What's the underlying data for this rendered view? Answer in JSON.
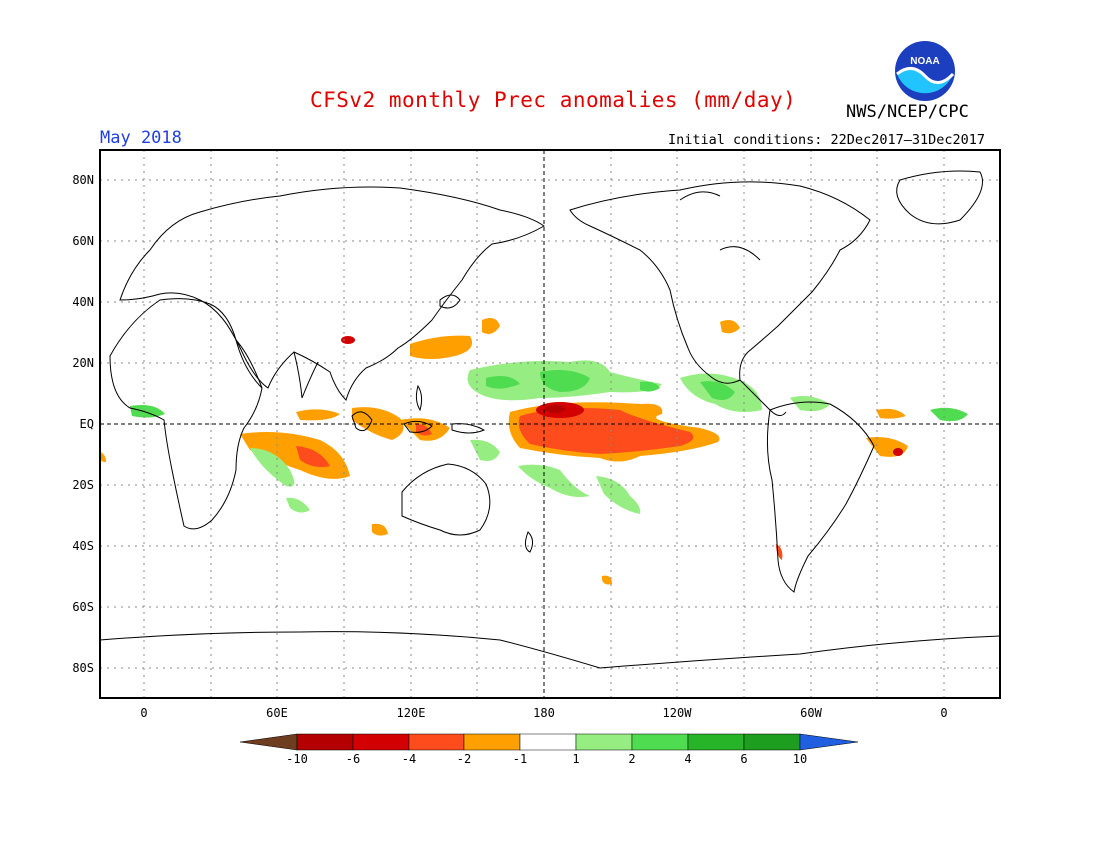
{
  "title": "CFSv2 monthly Prec anomalies (mm/day)",
  "agency": "NWS/NCEP/CPC",
  "logo_text": "NOAA",
  "valid_month": "May 2018",
  "initial_conditions": "Initial conditions: 22Dec2017–31Dec2017",
  "lat_labels": [
    "80N",
    "60N",
    "40N",
    "20N",
    "EQ",
    "20S",
    "40S",
    "60S",
    "80S"
  ],
  "lon_labels": [
    "0",
    "60E",
    "120E",
    "180",
    "120W",
    "60W",
    "0"
  ],
  "colorbar": {
    "labels": [
      "-10",
      "-6",
      "-4",
      "-2",
      "-1",
      "1",
      "2",
      "4",
      "6",
      "10"
    ],
    "colors": [
      "#6e3c1e",
      "#b40000",
      "#d20000",
      "#ff4c1c",
      "#ffa000",
      "#ffffff",
      "#96ee82",
      "#50dc50",
      "#28b428",
      "#1e9e1e",
      "#2060e0"
    ]
  },
  "colors": {
    "title": "#e00000",
    "month": "#1f3fe0",
    "strong_dry": "#b40000",
    "dry": "#ff4c1c",
    "moderate_dry": "#ffa000",
    "weak_wet": "#96ee82",
    "wet": "#50dc50"
  }
}
